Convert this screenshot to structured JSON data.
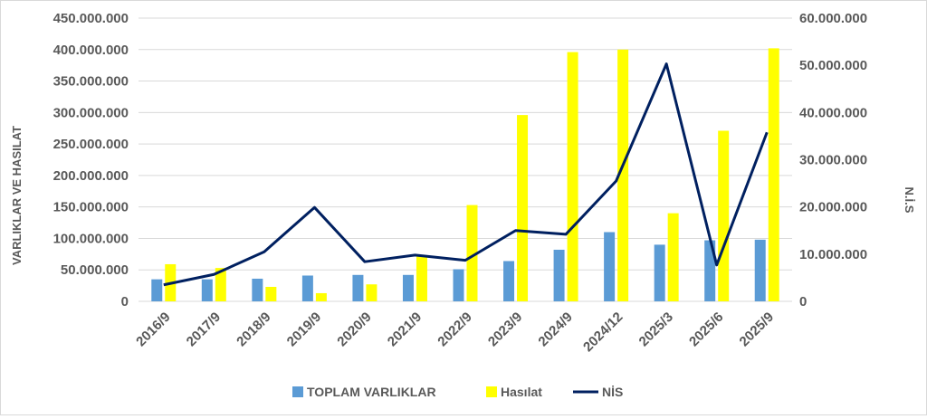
{
  "chart_data": {
    "type": "bar",
    "title": "",
    "categories": [
      "2016/9",
      "2017/9",
      "2018/9",
      "2019/9",
      "2020/9",
      "2021/9",
      "2022/9",
      "2023/9",
      "2024/9",
      "2024/12",
      "2025/3",
      "2025/6",
      "2025/9"
    ],
    "ylabel_left": "VARLIKLAR VE HASILAT",
    "ylabel_right": "N.İ.S",
    "ylim_left": [
      0,
      450000000
    ],
    "ylim_right": [
      0,
      60000000
    ],
    "yticks_left": [
      "0",
      "50.000.000",
      "100.000.000",
      "150.000.000",
      "200.000.000",
      "250.000.000",
      "300.000.000",
      "350.000.000",
      "400.000.000",
      "450.000.000"
    ],
    "yticks_right": [
      "0",
      "10.000.000",
      "20.000.000",
      "30.000.000",
      "40.000.000",
      "50.000.000",
      "60.000.000"
    ],
    "grid": true,
    "legend_position": "bottom",
    "series": [
      {
        "name": "TOPLAM VARLIKLAR",
        "type": "bar",
        "axis": "left",
        "color": "#5b9bd5",
        "values": [
          35000000,
          35000000,
          36000000,
          41000000,
          42000000,
          42000000,
          51000000,
          64000000,
          82000000,
          110000000,
          90000000,
          97000000,
          98000000
        ]
      },
      {
        "name": "Hasılat",
        "type": "bar",
        "axis": "left",
        "color": "#ffff00",
        "values": [
          59000000,
          53000000,
          23000000,
          13000000,
          27000000,
          72000000,
          153000000,
          296000000,
          396000000,
          400000000,
          140000000,
          271000000,
          402000000
        ]
      },
      {
        "name": "NİS",
        "type": "line",
        "axis": "right",
        "color": "#002060",
        "values": [
          3500000,
          5700000,
          10500000,
          19900000,
          8400000,
          9800000,
          8700000,
          15000000,
          14200000,
          25500000,
          50300000,
          7700000,
          35800000
        ]
      }
    ]
  }
}
